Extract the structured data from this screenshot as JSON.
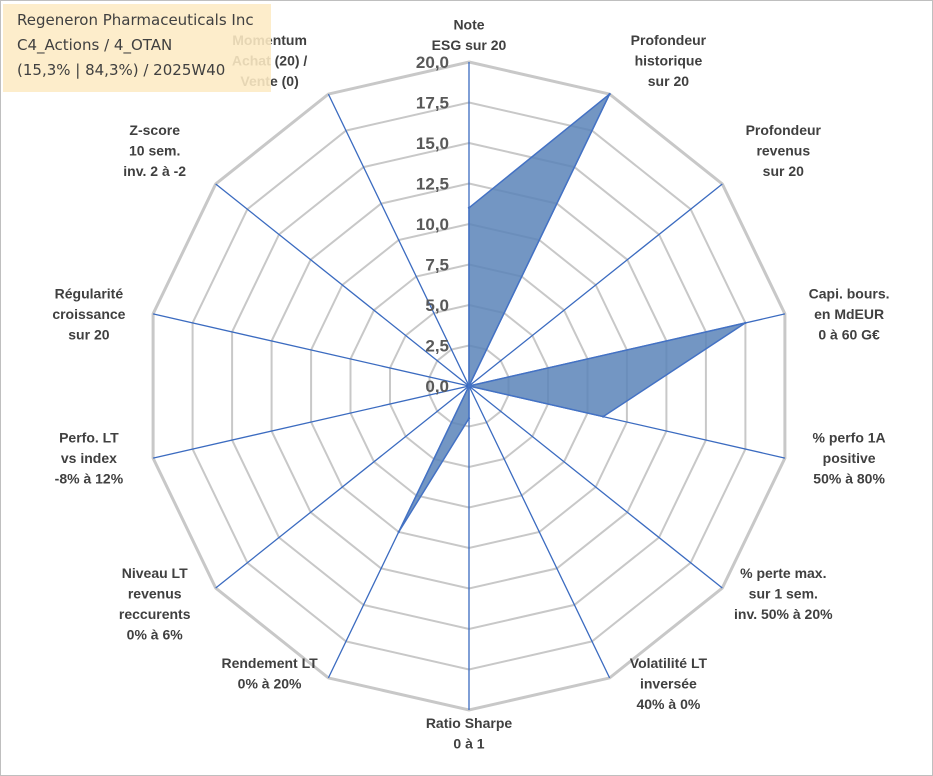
{
  "info": {
    "company": "Regeneron Pharmaceuticals Inc",
    "portfolio": "C4_Actions / 4_OTAN",
    "stats": "(15,3% | 84,3%) / 2025W40"
  },
  "colors": {
    "grid": "#c8c8c8",
    "axis": "#3b6bc0",
    "fill": "#5a84b8",
    "outline": "#4472c4",
    "tick_text": "#595959",
    "label_text": "#404040",
    "info_bg": "#fdeac4"
  },
  "chart_data": {
    "type": "radar",
    "title": "",
    "rmin": 0,
    "rmax": 20,
    "tick_step": 2.5,
    "tick_labels": [
      "0,0",
      "2,5",
      "5,0",
      "7,5",
      "10,0",
      "12,5",
      "15,0",
      "17,5",
      "20,0"
    ],
    "grid": true,
    "categories": [
      [
        "Note",
        "ESG sur 20"
      ],
      [
        "Profondeur",
        "historique",
        "sur 20"
      ],
      [
        "Profondeur",
        "revenus",
        "sur 20"
      ],
      [
        "Capi. bours.",
        "en MdEUR",
        "0 à 60 G€"
      ],
      [
        "% perfo 1A",
        "positive",
        "50% à 80%"
      ],
      [
        "% perte max.",
        "sur 1 sem.",
        "inv. 50% à 20%"
      ],
      [
        "Volatilité LT",
        "inversée",
        "40% à 0%"
      ],
      [
        "Ratio Sharpe",
        "0 à 1"
      ],
      [
        "Rendement LT",
        "0% à 20%"
      ],
      [
        "Niveau LT",
        "revenus",
        "reccurents",
        "0% à 6%"
      ],
      [
        "Perfo. LT",
        "vs index",
        "-8% à 12%"
      ],
      [
        "Régularité",
        "croissance",
        "sur 20"
      ],
      [
        "Z-score",
        "10 sem.",
        "inv. 2 à -2"
      ],
      [
        "Momentum",
        "Achat (20) /",
        "Vente (0)"
      ]
    ],
    "series": [
      {
        "values": [
          11,
          20,
          0,
          17.5,
          8.5,
          0,
          0,
          2,
          10,
          0,
          0,
          0,
          0,
          0
        ]
      }
    ]
  }
}
